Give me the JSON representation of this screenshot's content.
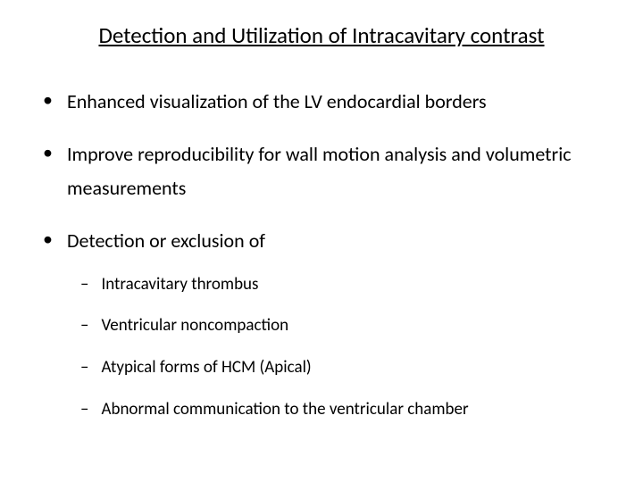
{
  "slide": {
    "title": "Detection and Utilization of Intracavitary contrast",
    "title_fontsize": 25,
    "title_underline": true,
    "background_color": "#ffffff",
    "text_color": "#000000",
    "bullets": [
      {
        "text": "Enhanced visualization of the LV endocardial borders",
        "fontsize": 22,
        "marker": "•"
      },
      {
        "text": "Improve reproducibility for wall motion analysis and volumetric measurements",
        "fontsize": 22,
        "marker": "•"
      },
      {
        "text": "Detection or exclusion of",
        "fontsize": 22,
        "marker": "•",
        "subitems": [
          {
            "text": "Intracavitary thrombus",
            "fontsize": 19,
            "marker": "–"
          },
          {
            "text": "Ventricular noncompaction",
            "fontsize": 19,
            "marker": "–"
          },
          {
            "text": "Atypical forms of HCM (Apical)",
            "fontsize": 19,
            "marker": "–"
          },
          {
            "text": "Abnormal communication to the ventricular chamber",
            "fontsize": 19,
            "marker": "–"
          }
        ]
      }
    ]
  }
}
